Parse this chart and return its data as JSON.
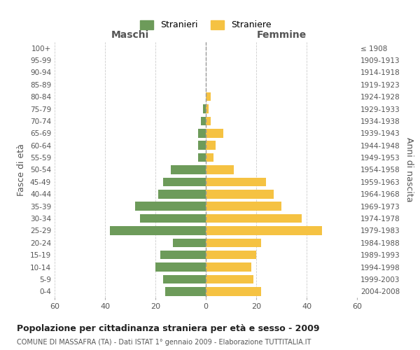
{
  "age_groups": [
    "0-4",
    "5-9",
    "10-14",
    "15-19",
    "20-24",
    "25-29",
    "30-34",
    "35-39",
    "40-44",
    "45-49",
    "50-54",
    "55-59",
    "60-64",
    "65-69",
    "70-74",
    "75-79",
    "80-84",
    "85-89",
    "90-94",
    "95-99",
    "100+"
  ],
  "birth_years": [
    "2004-2008",
    "1999-2003",
    "1994-1998",
    "1989-1993",
    "1984-1988",
    "1979-1983",
    "1974-1978",
    "1969-1973",
    "1964-1968",
    "1959-1963",
    "1954-1958",
    "1949-1953",
    "1944-1948",
    "1939-1943",
    "1934-1938",
    "1929-1933",
    "1924-1928",
    "1919-1923",
    "1914-1918",
    "1909-1913",
    "≤ 1908"
  ],
  "maschi": [
    16,
    17,
    20,
    18,
    13,
    38,
    26,
    28,
    19,
    17,
    14,
    3,
    3,
    3,
    2,
    1,
    0,
    0,
    0,
    0,
    0
  ],
  "femmine": [
    22,
    19,
    18,
    20,
    22,
    46,
    38,
    30,
    27,
    24,
    11,
    3,
    4,
    7,
    2,
    1,
    2,
    0,
    0,
    0,
    0
  ],
  "color_maschi": "#6d9b5a",
  "color_femmine": "#f5c242",
  "xlabel_left": "Maschi",
  "xlabel_right": "Femmine",
  "ylabel_left": "Fasce di età",
  "ylabel_right": "Anni di nascita",
  "xlim": 60,
  "title": "Popolazione per cittadinanza straniera per età e sesso - 2009",
  "subtitle": "COMUNE DI MASSAFRA (TA) - Dati ISTAT 1° gennaio 2009 - Elaborazione TUTTITALIA.IT",
  "legend_maschi": "Stranieri",
  "legend_femmine": "Straniere",
  "background_color": "#ffffff",
  "grid_color": "#cccccc",
  "dashed_line_color": "#999999"
}
